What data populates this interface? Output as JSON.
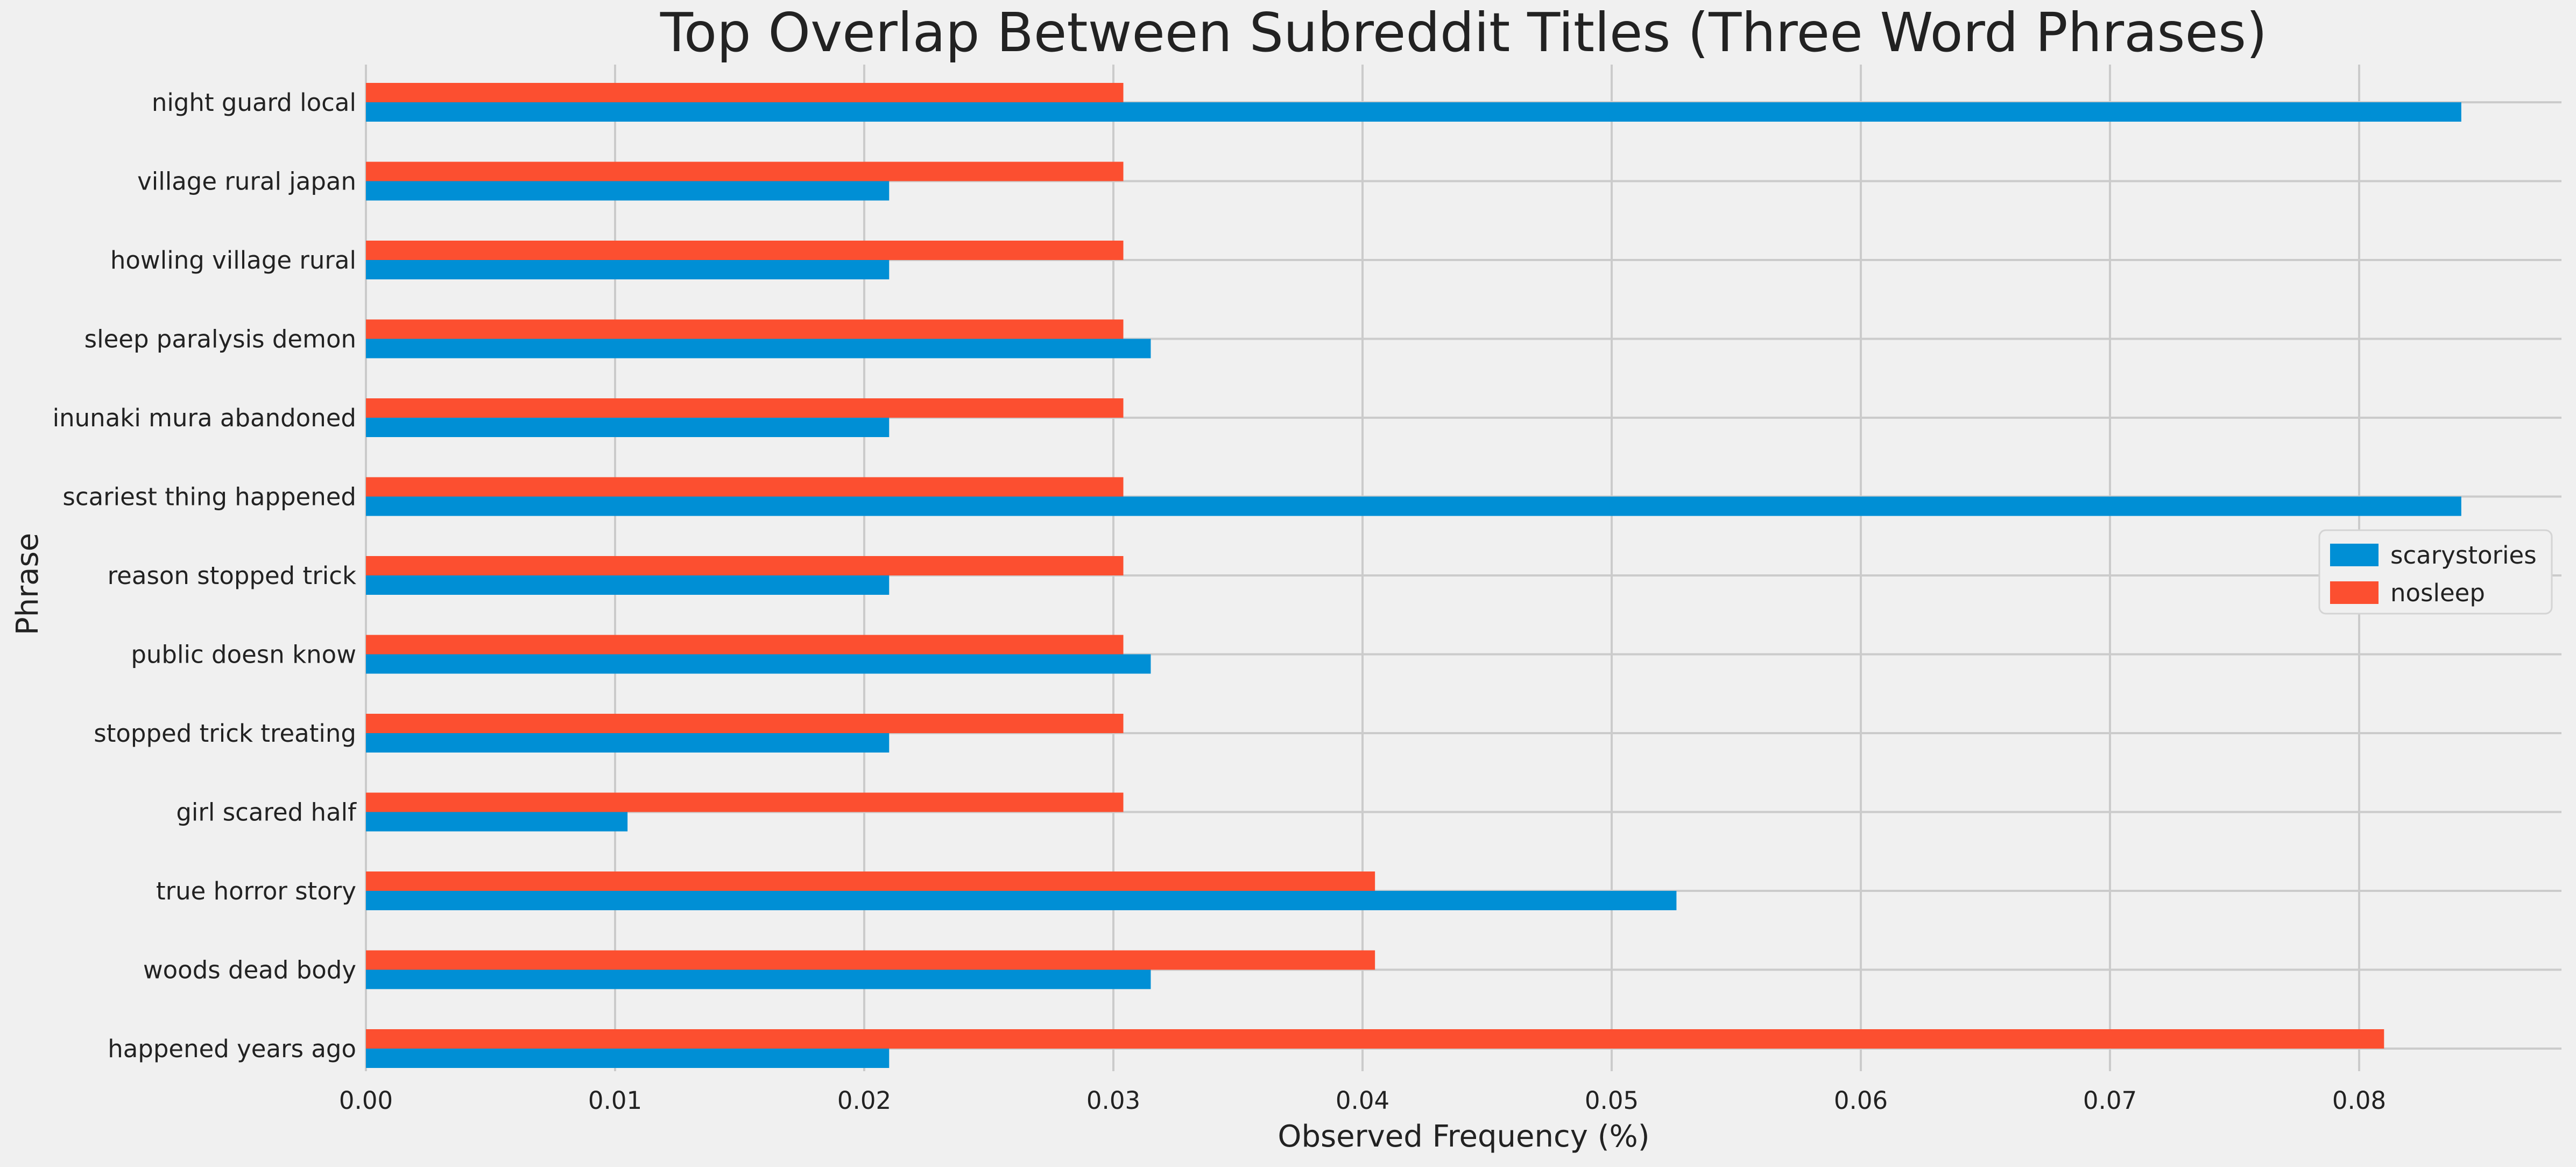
{
  "chart_data": {
    "type": "bar",
    "orientation": "horizontal",
    "title": "Top Overlap Between Subreddit Titles (Three Word Phrases)",
    "xlabel": "Observed Frequency (%)",
    "ylabel": "Phrase",
    "categories": [
      "night guard local",
      "village rural japan",
      "howling village rural",
      "sleep paralysis demon",
      "inunaki mura abandoned",
      "scariest thing happened",
      "reason stopped trick",
      "public doesn know",
      "stopped trick treating",
      "girl scared half",
      "true horror story",
      "woods dead body",
      "happened years ago"
    ],
    "series": [
      {
        "name": "scarystories",
        "color": "#008fd5",
        "values": [
          0.0841,
          0.021,
          0.021,
          0.0315,
          0.021,
          0.0841,
          0.021,
          0.0315,
          0.021,
          0.0105,
          0.0526,
          0.0315,
          0.021
        ]
      },
      {
        "name": "nosleep",
        "color": "#fc4f30",
        "values": [
          0.0304,
          0.0304,
          0.0304,
          0.0304,
          0.0304,
          0.0304,
          0.0304,
          0.0304,
          0.0304,
          0.0304,
          0.0405,
          0.0405,
          0.081
        ]
      }
    ],
    "xticks": [
      0,
      0.01,
      0.02,
      0.03,
      0.04,
      0.05,
      0.06,
      0.07,
      0.08
    ],
    "xtick_labels": [
      "0.00",
      "0.01",
      "0.02",
      "0.03",
      "0.04",
      "0.05",
      "0.06",
      "0.07",
      "0.08"
    ],
    "xlim": [
      0,
      0.0882
    ],
    "grid": true,
    "legend_position": "center-right",
    "style": {
      "background": "#f0f0f0",
      "grid_color": "#cbcbcb"
    }
  }
}
